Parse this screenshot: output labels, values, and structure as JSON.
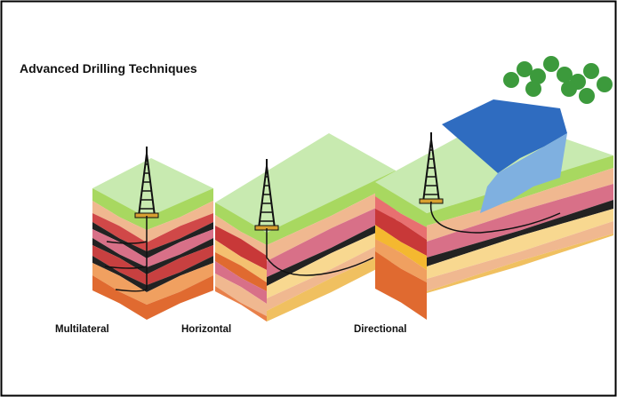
{
  "title": "Advanced Drilling Techniques",
  "labels": [
    "Multilateral",
    "Horizontal",
    "Directional"
  ]
}
